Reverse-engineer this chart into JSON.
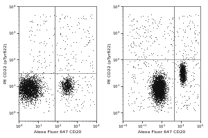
{
  "panel1": {
    "cluster1": {
      "x_center": 3.0,
      "y_center": 8,
      "x_spread": 0.7,
      "y_spread": 0.5,
      "n": 3000
    },
    "cluster2": {
      "x_center": 300,
      "y_center": 10,
      "x_spread": 0.35,
      "y_spread": 0.4,
      "n": 700
    },
    "vline_x": 70,
    "hline_y": 30,
    "xlabel": "Alexa Fluor 647 CD20",
    "ylabel": "PE CD22 (pTyr822)",
    "xlim": [
      1,
      10000
    ],
    "ylim": [
      0.5,
      10000
    ],
    "sparse_n": 300
  },
  "panel2": {
    "cluster1": {
      "x_center": 5.0,
      "y_center": 8,
      "x_spread": 0.75,
      "y_spread": 0.55,
      "n": 4000
    },
    "cluster2": {
      "x_center": 1500,
      "y_center": 30,
      "x_spread": 0.35,
      "y_spread": 0.4,
      "n": 1100
    },
    "vline_x": 200,
    "hline_y": 100,
    "xlabel": "Alexa Fluor 647 CD20",
    "ylabel": "PE CD22 (pTyr822)",
    "xlim": [
      0.001,
      100000
    ],
    "ylim": [
      0.5,
      10000
    ],
    "sparse_n": 500
  },
  "dot_color": "#111111",
  "dot_size": 0.5,
  "dot_alpha": 0.6,
  "line_color": "#666666",
  "line_width": 0.6,
  "bg_color": "#ffffff",
  "fontsize_label": 4.5,
  "fontsize_tick": 4.0
}
